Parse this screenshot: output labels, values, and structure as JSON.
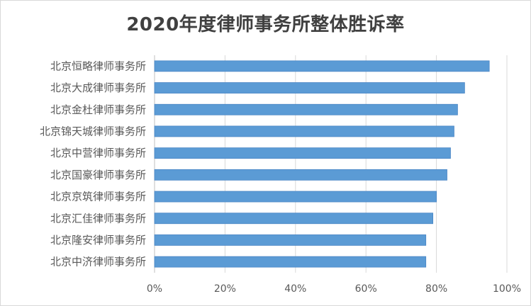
{
  "chart_data": {
    "type": "bar",
    "orientation": "horizontal",
    "title": "2020年度律师事务所整体胜诉率",
    "categories": [
      "北京恒略律师事务所",
      "北京大成律师事务所",
      "北京金杜律师事务所",
      "北京锦天城律师事务所",
      "北京中营律师事务所",
      "北京国豪律师事务所",
      "北京京筑律师事务所",
      "北京汇佳律师事务所",
      "北京隆安律师事务所",
      "北京中济律师事务所"
    ],
    "values": [
      0.95,
      0.88,
      0.86,
      0.85,
      0.84,
      0.83,
      0.8,
      0.79,
      0.77,
      0.77
    ],
    "xlim": [
      0,
      1
    ],
    "x_ticks": [
      "0%",
      "20%",
      "40%",
      "60%",
      "80%",
      "100%"
    ],
    "x_tick_values": [
      0,
      0.2,
      0.4,
      0.6,
      0.8,
      1.0
    ],
    "grid": true,
    "legend": "none",
    "bar_color": "#5b9bd5",
    "bar_edge_color": "#4a86c5",
    "grid_color": "#d9d9d9"
  }
}
